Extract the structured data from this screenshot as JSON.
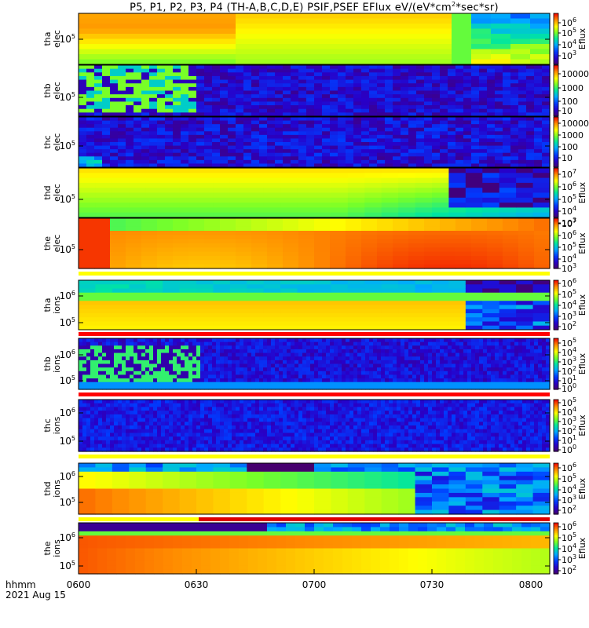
{
  "title_prefix": "P5, P1, P2, P3, P4 (TH-A,B,C,D,E) PSIF,PSEF EFlux eV/(eV*cm",
  "title_suffix": "*sec*sr)",
  "x_ticks": [
    "0600",
    "0630",
    "0700",
    "0730",
    "0800"
  ],
  "x_annot": {
    "line1": "hhmm",
    "line2": "2021 Aug 15"
  },
  "colorbar_label": "Eflux",
  "chart_data": {
    "type": "heatmap",
    "x_range": [
      "06:00",
      "08:00"
    ],
    "panels": [
      {
        "label": [
          "tha",
          "elec"
        ],
        "y_tick": "10^5",
        "log_scale": true,
        "cbar_ticks": [
          "10^6",
          "10^5",
          "10^4",
          "10^3"
        ],
        "cbar_label": true
      },
      {
        "label": [
          "thb",
          "elec"
        ],
        "y_tick": "10^5",
        "log_scale": true,
        "cbar_ticks": [
          "10000",
          "1000",
          "100",
          "10"
        ],
        "cbar_label": false
      },
      {
        "label": [
          "thc",
          "elec"
        ],
        "y_tick": "10^5",
        "log_scale": true,
        "cbar_ticks": [
          "10000",
          "1000",
          "100",
          "10"
        ],
        "cbar_label": false
      },
      {
        "label": [
          "thd",
          "elec"
        ],
        "y_tick": "10^5",
        "log_scale": true,
        "cbar_ticks": [
          "10^7",
          "10^6",
          "10^5",
          "10^4",
          "10^3"
        ],
        "cbar_label": true
      },
      {
        "label": [
          "the",
          "elec"
        ],
        "y_tick": "10^5",
        "log_scale": true,
        "cbar_ticks": [
          "10^7",
          "10^6",
          "10^5",
          "10^4",
          "10^3"
        ],
        "cbar_label": true
      },
      {
        "label": [
          "tha",
          "ions"
        ],
        "y_ticks": [
          "10^6",
          "10^5"
        ],
        "log_scale": true,
        "cbar_ticks": [
          "10^6",
          "10^5",
          "10^4",
          "10^3",
          "10^2"
        ],
        "cbar_label": true
      },
      {
        "label": [
          "thb",
          "ions"
        ],
        "y_ticks": [
          "10^6",
          "10^5"
        ],
        "log_scale": true,
        "cbar_ticks": [
          "10^5",
          "10^4",
          "10^3",
          "10^2",
          "10^1",
          "10^0"
        ],
        "cbar_label": true
      },
      {
        "label": [
          "thc",
          "ions"
        ],
        "y_ticks": [
          "10^6",
          "10^5"
        ],
        "log_scale": true,
        "cbar_ticks": [
          "10^5",
          "10^4",
          "10^3",
          "10^2",
          "10^1",
          "10^0"
        ],
        "cbar_label": true
      },
      {
        "label": [
          "thd",
          "ions"
        ],
        "y_ticks": [
          "10^6",
          "10^5"
        ],
        "log_scale": true,
        "cbar_ticks": [
          "10^6",
          "10^5",
          "10^4",
          "10^3",
          "10^2"
        ],
        "cbar_label": true
      },
      {
        "label": [
          "the",
          "ions"
        ],
        "y_ticks": [
          "10^6",
          "10^5"
        ],
        "log_scale": true,
        "cbar_ticks": [
          "10^6",
          "10^5",
          "10^4",
          "10^3",
          "10^2"
        ],
        "cbar_label": true
      }
    ]
  }
}
